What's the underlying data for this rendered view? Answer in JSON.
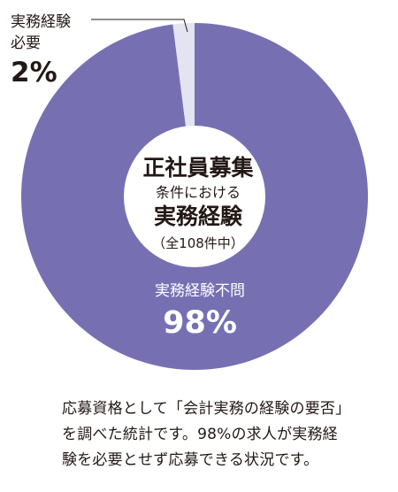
{
  "chart_data": {
    "type": "pie",
    "donut": true,
    "colors": {
      "main": "#7670b3",
      "minor": "#e3e3f1",
      "center": "#ffffff",
      "text_dark": "#231815",
      "text_light": "#ffffff",
      "leader": "#231815"
    },
    "slices": [
      {
        "label_lines": [
          "実務経験不問"
        ],
        "value": 98,
        "value_label": "98%"
      },
      {
        "label_lines": [
          "実務経験",
          "必要"
        ],
        "value": 2,
        "value_label": "2%"
      }
    ],
    "center_text": {
      "line1": "正社員募集",
      "line2": "条件における",
      "line3": "実務経験",
      "line4": "（全108件中）"
    }
  },
  "caption": {
    "lines": [
      "応募資格として「会計実務の経験の要否」",
      "を調べた統計です。98%の求人が実務経",
      "験を必要とせず応募できる状況です。"
    ]
  }
}
